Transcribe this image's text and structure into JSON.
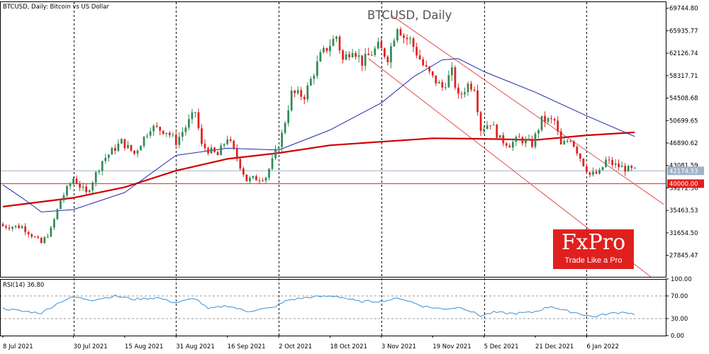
{
  "header": {
    "symbol_caption": "BTCUSD, Daily:  Bitcoin vs US Dollar",
    "watermark_title": "BTCUSD, Daily",
    "rsi_label": "RSI(14) 36.80"
  },
  "logo": {
    "brand": "FxPro",
    "tagline": "Trade Like a Pro"
  },
  "colors": {
    "bull": "#2e8b57",
    "bear": "#e0201e",
    "ma_slow": "#d00000",
    "ma_fast": "#1f2aa8",
    "channel": "#e05050",
    "rsi": "#3a8fd6",
    "current_price": "#9fb3c8",
    "support": "#e0201e"
  },
  "chart_data": [
    {
      "type": "candlestick",
      "title": "BTCUSD, Daily",
      "ylim": [
        24200,
        70900
      ],
      "y_ticks": [
        69744.8,
        65935.77,
        62126.74,
        58317.71,
        54508.68,
        50699.65,
        46890.62,
        43081.59,
        39272.56,
        35463.53,
        31654.5,
        27845.47
      ],
      "y_tick_labels": [
        "69744.80",
        "65935.77",
        "62126.74",
        "58317.71",
        "54508.68",
        "50699.65",
        "46890.62",
        "43081.59",
        "39272.56",
        "35463.53",
        "31654.50",
        "27845.47"
      ],
      "x_labels": [
        {
          "date": "2021-07-08",
          "label": "8 Jul 2021"
        },
        {
          "date": "2021-07-30",
          "label": "30 Jul 2021"
        },
        {
          "date": "2021-08-15",
          "label": "15 Aug 2021"
        },
        {
          "date": "2021-08-31",
          "label": "31 Aug 2021"
        },
        {
          "date": "2021-09-16",
          "label": "16 Sep 2021"
        },
        {
          "date": "2021-10-02",
          "label": "2 Oct 2021"
        },
        {
          "date": "2021-10-18",
          "label": "18 Oct 2021"
        },
        {
          "date": "2021-11-03",
          "label": "3 Nov 2021"
        },
        {
          "date": "2021-11-19",
          "label": "19 Nov 2021"
        },
        {
          "date": "2021-12-05",
          "label": "5 Dec 2021"
        },
        {
          "date": "2021-12-21",
          "label": "21 Dec 2021"
        },
        {
          "date": "2022-01-06",
          "label": "6 Jan 2022"
        }
      ],
      "grid_dates": [
        "2021-07-30",
        "2021-08-31",
        "2021-10-02",
        "2021-11-03",
        "2021-12-05",
        "2022-01-06"
      ],
      "x_range": [
        "2021-07-08",
        "2022-01-30"
      ],
      "close_path": [
        [
          "2021-07-08",
          32800
        ],
        [
          "2021-07-14",
          32700
        ],
        [
          "2021-07-20",
          29900
        ],
        [
          "2021-07-23",
          32200
        ],
        [
          "2021-07-26",
          37200
        ],
        [
          "2021-07-30",
          40900
        ],
        [
          "2021-08-03",
          38300
        ],
        [
          "2021-08-08",
          43900
        ],
        [
          "2021-08-14",
          47100
        ],
        [
          "2021-08-18",
          45100
        ],
        [
          "2021-08-23",
          49600
        ],
        [
          "2021-08-28",
          48900
        ],
        [
          "2021-08-31",
          47100
        ],
        [
          "2021-09-06",
          52200
        ],
        [
          "2021-09-08",
          46400
        ],
        [
          "2021-09-13",
          44800
        ],
        [
          "2021-09-16",
          47900
        ],
        [
          "2021-09-20",
          43100
        ],
        [
          "2021-09-22",
          40600
        ],
        [
          "2021-09-28",
          41200
        ],
        [
          "2021-09-30",
          43800
        ],
        [
          "2021-10-03",
          48300
        ],
        [
          "2021-10-06",
          55300
        ],
        [
          "2021-10-10",
          54900
        ],
        [
          "2021-10-15",
          61600
        ],
        [
          "2021-10-20",
          65000
        ],
        [
          "2021-10-22",
          60900
        ],
        [
          "2021-10-25",
          63100
        ],
        [
          "2021-10-28",
          60600
        ],
        [
          "2021-11-02",
          63200
        ],
        [
          "2021-11-05",
          61400
        ],
        [
          "2021-11-08",
          66900
        ],
        [
          "2021-11-10",
          64900
        ],
        [
          "2021-11-12",
          64300
        ],
        [
          "2021-11-16",
          60100
        ],
        [
          "2021-11-19",
          57900
        ],
        [
          "2021-11-22",
          56300
        ],
        [
          "2021-11-25",
          58900
        ],
        [
          "2021-11-27",
          54600
        ],
        [
          "2021-11-30",
          56800
        ],
        [
          "2021-12-02",
          56500
        ],
        [
          "2021-12-04",
          49300
        ],
        [
          "2021-12-07",
          50400
        ],
        [
          "2021-12-10",
          47500
        ],
        [
          "2021-12-13",
          46700
        ],
        [
          "2021-12-16",
          47600
        ],
        [
          "2021-12-20",
          46700
        ],
        [
          "2021-12-23",
          50800
        ],
        [
          "2021-12-27",
          50600
        ],
        [
          "2021-12-29",
          46400
        ],
        [
          "2022-01-01",
          47700
        ],
        [
          "2022-01-05",
          43400
        ],
        [
          "2022-01-07",
          41500
        ],
        [
          "2022-01-10",
          41800
        ],
        [
          "2022-01-12",
          43900
        ],
        [
          "2022-01-15",
          43100
        ],
        [
          "2022-01-19",
          42400
        ],
        [
          "2022-01-21",
          42174
        ]
      ],
      "current_price": {
        "value": 42174.53,
        "label": "42174.53"
      },
      "support_level": {
        "value": 40000.0,
        "label": "40000.00"
      },
      "ma_slow": [
        [
          "2021-07-08",
          36100
        ],
        [
          "2021-07-30",
          37600
        ],
        [
          "2021-08-15",
          39400
        ],
        [
          "2021-08-31",
          42200
        ],
        [
          "2021-09-16",
          44200
        ],
        [
          "2021-10-02",
          45200
        ],
        [
          "2021-10-18",
          46500
        ],
        [
          "2021-11-03",
          47100
        ],
        [
          "2021-11-19",
          47700
        ],
        [
          "2021-12-05",
          47600
        ],
        [
          "2021-12-21",
          47400
        ],
        [
          "2022-01-06",
          48200
        ],
        [
          "2022-01-21",
          48700
        ]
      ],
      "ma_fast": [
        [
          "2021-07-08",
          39800
        ],
        [
          "2021-07-14",
          37600
        ],
        [
          "2021-07-20",
          35200
        ],
        [
          "2021-07-30",
          35600
        ],
        [
          "2021-08-15",
          38500
        ],
        [
          "2021-08-31",
          44800
        ],
        [
          "2021-09-16",
          46000
        ],
        [
          "2021-10-02",
          45700
        ],
        [
          "2021-10-18",
          49100
        ],
        [
          "2021-11-03",
          53700
        ],
        [
          "2021-11-13",
          58100
        ],
        [
          "2021-11-22",
          61000
        ],
        [
          "2021-11-27",
          61200
        ],
        [
          "2021-12-05",
          59000
        ],
        [
          "2021-12-21",
          55500
        ],
        [
          "2022-01-06",
          51500
        ],
        [
          "2022-01-21",
          48000
        ]
      ],
      "channel_upper": [
        [
          "2021-11-06",
          68600
        ],
        [
          "2022-01-30",
          36500
        ]
      ],
      "channel_lower": [
        [
          "2021-10-30",
          61200
        ],
        [
          "2022-01-26",
          24200
        ]
      ]
    },
    {
      "type": "line",
      "title": "RSI(14) 36.80",
      "ylim": [
        0,
        100
      ],
      "y_ticks": [
        100,
        70,
        30,
        0
      ],
      "y_tick_labels": [
        "100.00",
        "70.00",
        "30.00",
        "0.00"
      ],
      "levels": [
        70,
        30
      ],
      "series": [
        {
          "points": [
            [
              "2021-07-08",
              48
            ],
            [
              "2021-07-14",
              43
            ],
            [
              "2021-07-20",
              40
            ],
            [
              "2021-07-26",
              60
            ],
            [
              "2021-07-30",
              68
            ],
            [
              "2021-08-05",
              63
            ],
            [
              "2021-08-12",
              70
            ],
            [
              "2021-08-18",
              64
            ],
            [
              "2021-08-25",
              67
            ],
            [
              "2021-08-31",
              58
            ],
            [
              "2021-09-06",
              66
            ],
            [
              "2021-09-10",
              47
            ],
            [
              "2021-09-16",
              53
            ],
            [
              "2021-09-22",
              43
            ],
            [
              "2021-09-30",
              49
            ],
            [
              "2021-10-05",
              63
            ],
            [
              "2021-10-12",
              68
            ],
            [
              "2021-10-20",
              70
            ],
            [
              "2021-10-27",
              60
            ],
            [
              "2021-11-03",
              61
            ],
            [
              "2021-11-09",
              66
            ],
            [
              "2021-11-16",
              52
            ],
            [
              "2021-11-22",
              47
            ],
            [
              "2021-11-28",
              50
            ],
            [
              "2021-12-04",
              35
            ],
            [
              "2021-12-08",
              41
            ],
            [
              "2021-12-14",
              39
            ],
            [
              "2021-12-20",
              41
            ],
            [
              "2021-12-26",
              52
            ],
            [
              "2021-12-30",
              44
            ],
            [
              "2022-01-03",
              40
            ],
            [
              "2022-01-08",
              33
            ],
            [
              "2022-01-12",
              38
            ],
            [
              "2022-01-15",
              40
            ],
            [
              "2022-01-18",
              42
            ],
            [
              "2022-01-21",
              36.8
            ]
          ]
        }
      ]
    }
  ]
}
